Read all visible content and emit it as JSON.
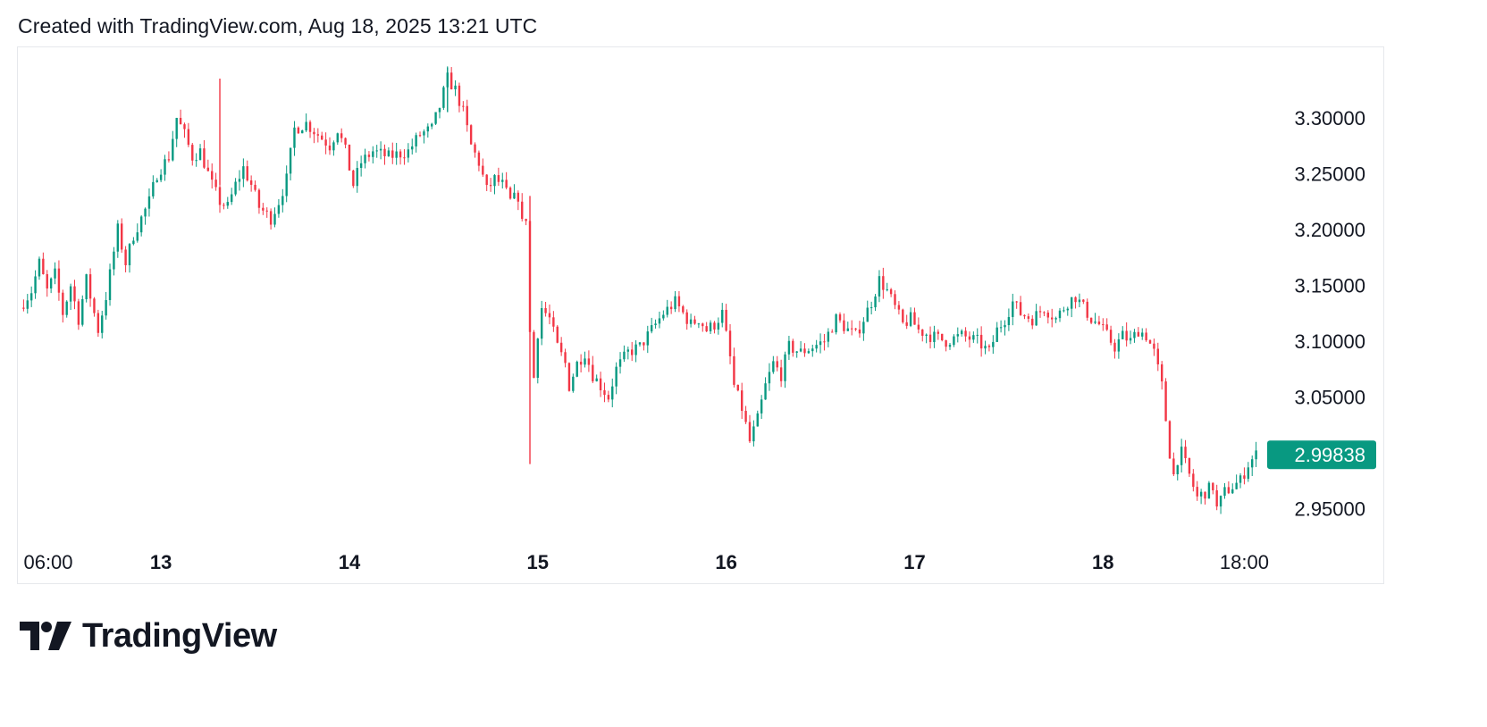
{
  "header": {
    "caption": "Created with TradingView.com, Aug 18, 2025 13:21 UTC"
  },
  "brand": {
    "name": "TradingView",
    "logo_icon": "tradingview-logo-icon"
  },
  "colors": {
    "up": "#089981",
    "down": "#f23645",
    "text": "#131722",
    "border": "#e6e8ec",
    "price_tag": "#089981"
  },
  "chart_data": {
    "type": "candlestick",
    "title": "",
    "xlabel": "",
    "ylabel": "",
    "grid": false,
    "y_axis_side": "right",
    "ylim": [
      2.925,
      3.355
    ],
    "y_ticks": [
      "3.30000",
      "3.25000",
      "3.20000",
      "3.15000",
      "3.10000",
      "3.05000",
      "2.95000"
    ],
    "x_ticks": [
      "06:00",
      "13",
      "14",
      "15",
      "16",
      "17",
      "18",
      "18:00"
    ],
    "x_tick_hours": [
      6,
      24,
      48,
      72,
      96,
      120,
      144,
      162
    ],
    "x_range_hours": [
      6,
      164
    ],
    "last_price": {
      "label": "2.99838",
      "value": 2.99838
    },
    "closes_path": [
      [
        6.0,
        3.13
      ],
      [
        7.5,
        3.145
      ],
      [
        8.5,
        3.17
      ],
      [
        9.5,
        3.145
      ],
      [
        10.5,
        3.16
      ],
      [
        11.5,
        3.125
      ],
      [
        12.5,
        3.15
      ],
      [
        13.5,
        3.12
      ],
      [
        14.5,
        3.155
      ],
      [
        16.0,
        3.11
      ],
      [
        17.0,
        3.14
      ],
      [
        18.5,
        3.2
      ],
      [
        19.5,
        3.17
      ],
      [
        20.5,
        3.195
      ],
      [
        22.5,
        3.225
      ],
      [
        23.5,
        3.25
      ],
      [
        25.0,
        3.265
      ],
      [
        26.0,
        3.3
      ],
      [
        27.0,
        3.285
      ],
      [
        28.0,
        3.265
      ],
      [
        29.0,
        3.27
      ],
      [
        30.5,
        3.24
      ],
      [
        31.5,
        3.225
      ],
      [
        32.5,
        3.22
      ],
      [
        33.5,
        3.24
      ],
      [
        34.5,
        3.255
      ],
      [
        35.5,
        3.24
      ],
      [
        36.5,
        3.22
      ],
      [
        38.0,
        3.21
      ],
      [
        39.0,
        3.225
      ],
      [
        40.0,
        3.245
      ],
      [
        41.0,
        3.29
      ],
      [
        42.5,
        3.295
      ],
      [
        44.0,
        3.285
      ],
      [
        45.5,
        3.275
      ],
      [
        46.5,
        3.29
      ],
      [
        47.5,
        3.27
      ],
      [
        48.5,
        3.24
      ],
      [
        49.5,
        3.26
      ],
      [
        51.0,
        3.27
      ],
      [
        53.0,
        3.265
      ],
      [
        55.5,
        3.27
      ],
      [
        57.0,
        3.285
      ],
      [
        58.5,
        3.29
      ],
      [
        59.5,
        3.31
      ],
      [
        60.5,
        3.335
      ],
      [
        61.5,
        3.325
      ],
      [
        62.5,
        3.305
      ],
      [
        63.5,
        3.275
      ],
      [
        64.5,
        3.26
      ],
      [
        65.5,
        3.235
      ],
      [
        66.5,
        3.245
      ],
      [
        67.5,
        3.24
      ],
      [
        68.5,
        3.225
      ],
      [
        69.5,
        3.23
      ],
      [
        70.0,
        3.205
      ],
      [
        70.8,
        3.215
      ],
      [
        71.2,
        3.0
      ],
      [
        71.6,
        3.09
      ],
      [
        72.5,
        3.13
      ],
      [
        73.5,
        3.12
      ],
      [
        74.5,
        3.095
      ],
      [
        75.5,
        3.08
      ],
      [
        76.0,
        3.06
      ],
      [
        77.0,
        3.08
      ],
      [
        78.0,
        3.09
      ],
      [
        79.0,
        3.07
      ],
      [
        80.0,
        3.06
      ],
      [
        81.0,
        3.05
      ],
      [
        82.0,
        3.075
      ],
      [
        83.5,
        3.09
      ],
      [
        85.0,
        3.095
      ],
      [
        86.5,
        3.11
      ],
      [
        88.0,
        3.125
      ],
      [
        89.5,
        3.135
      ],
      [
        90.5,
        3.125
      ],
      [
        91.5,
        3.115
      ],
      [
        92.5,
        3.12
      ],
      [
        93.5,
        3.11
      ],
      [
        94.5,
        3.115
      ],
      [
        95.5,
        3.125
      ],
      [
        96.5,
        3.085
      ],
      [
        97.0,
        3.06
      ],
      [
        98.0,
        3.04
      ],
      [
        99.0,
        3.01
      ],
      [
        100.0,
        3.03
      ],
      [
        101.0,
        3.06
      ],
      [
        102.0,
        3.08
      ],
      [
        103.0,
        3.07
      ],
      [
        104.0,
        3.095
      ],
      [
        105.5,
        3.09
      ],
      [
        107.0,
        3.095
      ],
      [
        108.5,
        3.1
      ],
      [
        110.0,
        3.12
      ],
      [
        111.5,
        3.11
      ],
      [
        112.5,
        3.105
      ],
      [
        113.5,
        3.12
      ],
      [
        114.5,
        3.135
      ],
      [
        115.5,
        3.155
      ],
      [
        116.5,
        3.145
      ],
      [
        117.5,
        3.13
      ],
      [
        118.5,
        3.115
      ],
      [
        119.5,
        3.12
      ],
      [
        120.5,
        3.11
      ],
      [
        122.0,
        3.105
      ],
      [
        124.0,
        3.1
      ],
      [
        126.0,
        3.105
      ],
      [
        128.0,
        3.1
      ],
      [
        129.5,
        3.09
      ],
      [
        130.5,
        3.11
      ],
      [
        131.5,
        3.12
      ],
      [
        132.5,
        3.135
      ],
      [
        133.5,
        3.125
      ],
      [
        135.0,
        3.12
      ],
      [
        136.5,
        3.13
      ],
      [
        138.0,
        3.12
      ],
      [
        139.5,
        3.135
      ],
      [
        140.5,
        3.14
      ],
      [
        141.5,
        3.13
      ],
      [
        142.5,
        3.12
      ],
      [
        143.5,
        3.115
      ],
      [
        144.5,
        3.105
      ],
      [
        145.5,
        3.095
      ],
      [
        146.5,
        3.105
      ],
      [
        147.5,
        3.1
      ],
      [
        148.5,
        3.11
      ],
      [
        149.5,
        3.105
      ],
      [
        150.5,
        3.09
      ],
      [
        151.5,
        3.06
      ],
      [
        152.0,
        3.03
      ],
      [
        152.5,
        3.0
      ],
      [
        153.0,
        2.98
      ],
      [
        153.5,
        2.995
      ],
      [
        154.0,
        3.0
      ],
      [
        155.0,
        2.98
      ],
      [
        156.0,
        2.96
      ],
      [
        157.0,
        2.965
      ],
      [
        158.0,
        2.97
      ],
      [
        158.5,
        2.95
      ],
      [
        159.5,
        2.965
      ],
      [
        160.5,
        2.97
      ],
      [
        161.5,
        2.975
      ],
      [
        162.5,
        2.99
      ],
      [
        163.5,
        2.99838
      ]
    ],
    "spikes": [
      {
        "x": 71.0,
        "high": 3.23,
        "low": 2.99,
        "direction": "down"
      },
      {
        "x": 31.5,
        "high": 3.335,
        "low": 3.24,
        "direction": "down"
      },
      {
        "x": 60.5,
        "high": 3.345,
        "low": 3.305,
        "direction": "up"
      }
    ]
  }
}
